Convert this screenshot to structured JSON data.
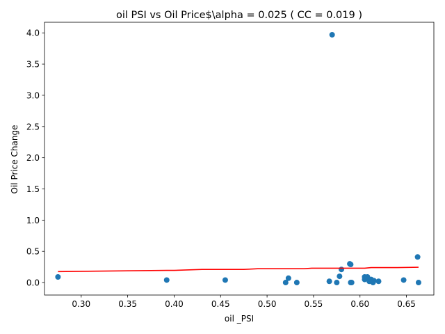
{
  "chart_data": {
    "type": "scatter",
    "title": "oil  PSI vs Oil Price$\\alpha = 0.025 ( CC = 0.019 )",
    "xlabel": "oil _PSI",
    "ylabel": "Oil Price Change",
    "xlim": [
      0.2605,
      0.6795
    ],
    "ylim": [
      -0.2,
      4.17
    ],
    "xticks": [
      0.3,
      0.35,
      0.4,
      0.45,
      0.5,
      0.55,
      0.6,
      0.65
    ],
    "xtick_labels": [
      "0.30",
      "0.35",
      "0.40",
      "0.45",
      "0.50",
      "0.55",
      "0.60",
      "0.65"
    ],
    "yticks": [
      0.0,
      0.5,
      1.0,
      1.5,
      2.0,
      2.5,
      3.0,
      3.5,
      4.0
    ],
    "ytick_labels": [
      "0.0",
      "0.5",
      "1.0",
      "1.5",
      "2.0",
      "2.5",
      "3.0",
      "3.5",
      "4.0"
    ],
    "grid": false,
    "point_color": "#1f77b4",
    "line_color": "#ff0000",
    "points": [
      {
        "x": 0.275,
        "y": 0.09
      },
      {
        "x": 0.392,
        "y": 0.04
      },
      {
        "x": 0.455,
        "y": 0.04
      },
      {
        "x": 0.52,
        "y": 0.0
      },
      {
        "x": 0.523,
        "y": 0.07
      },
      {
        "x": 0.532,
        "y": 0.0
      },
      {
        "x": 0.567,
        "y": 0.02
      },
      {
        "x": 0.57,
        "y": 3.97
      },
      {
        "x": 0.575,
        "y": 0.0
      },
      {
        "x": 0.578,
        "y": 0.1
      },
      {
        "x": 0.58,
        "y": 0.21
      },
      {
        "x": 0.589,
        "y": 0.3
      },
      {
        "x": 0.59,
        "y": 0.29
      },
      {
        "x": 0.59,
        "y": 0.0
      },
      {
        "x": 0.591,
        "y": 0.0
      },
      {
        "x": 0.605,
        "y": 0.05
      },
      {
        "x": 0.605,
        "y": 0.09
      },
      {
        "x": 0.608,
        "y": 0.09
      },
      {
        "x": 0.61,
        "y": 0.02
      },
      {
        "x": 0.612,
        "y": 0.05
      },
      {
        "x": 0.614,
        "y": 0.0
      },
      {
        "x": 0.615,
        "y": 0.03
      },
      {
        "x": 0.62,
        "y": 0.02
      },
      {
        "x": 0.647,
        "y": 0.04
      },
      {
        "x": 0.662,
        "y": 0.41
      },
      {
        "x": 0.663,
        "y": 0.0
      }
    ],
    "fit_line": [
      {
        "x": 0.275,
        "y": 0.175
      },
      {
        "x": 0.3,
        "y": 0.18
      },
      {
        "x": 0.392,
        "y": 0.195
      },
      {
        "x": 0.4,
        "y": 0.195
      },
      {
        "x": 0.43,
        "y": 0.21
      },
      {
        "x": 0.455,
        "y": 0.21
      },
      {
        "x": 0.475,
        "y": 0.21
      },
      {
        "x": 0.49,
        "y": 0.222
      },
      {
        "x": 0.52,
        "y": 0.222
      },
      {
        "x": 0.54,
        "y": 0.222
      },
      {
        "x": 0.548,
        "y": 0.23
      },
      {
        "x": 0.567,
        "y": 0.23
      },
      {
        "x": 0.58,
        "y": 0.23
      },
      {
        "x": 0.59,
        "y": 0.23
      },
      {
        "x": 0.605,
        "y": 0.23
      },
      {
        "x": 0.612,
        "y": 0.24
      },
      {
        "x": 0.62,
        "y": 0.24
      },
      {
        "x": 0.64,
        "y": 0.24
      },
      {
        "x": 0.663,
        "y": 0.245
      }
    ]
  }
}
